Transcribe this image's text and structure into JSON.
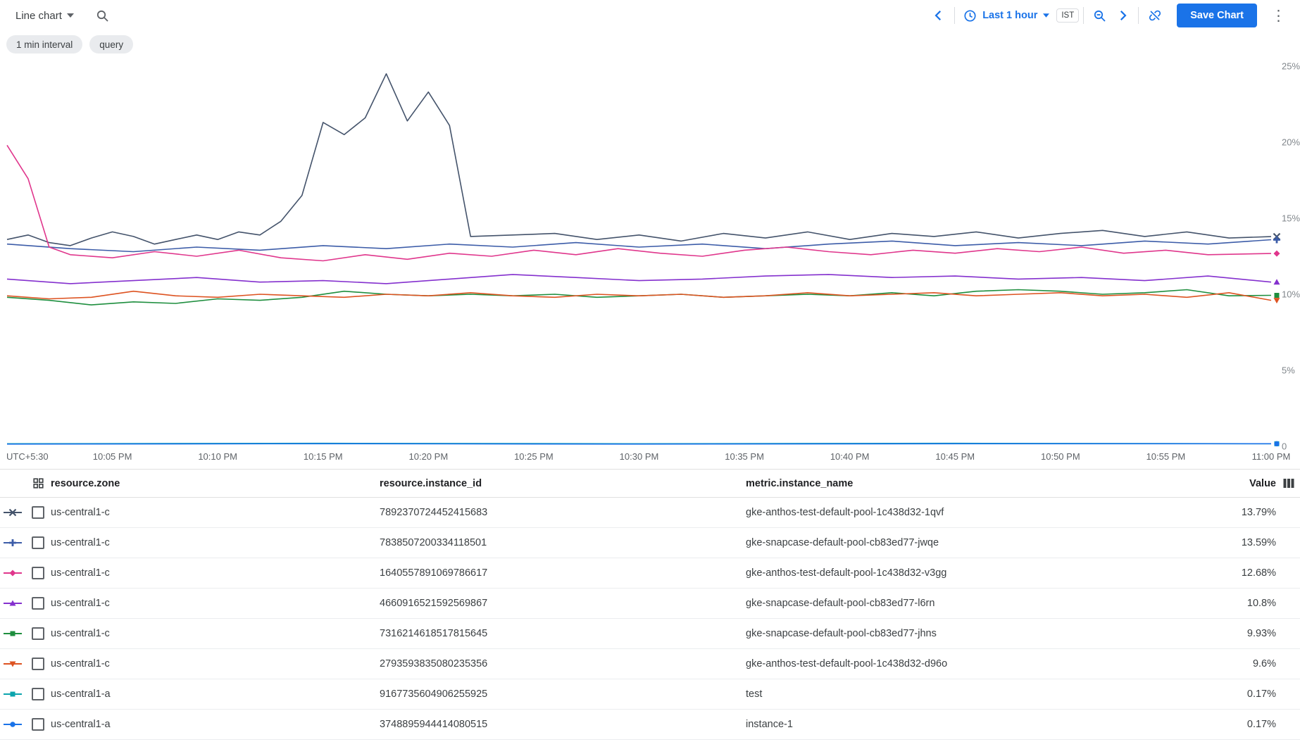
{
  "colors": {
    "accent_blue": "#1a73e8",
    "icon_gray": "#5f6368",
    "axis_label_gray": "#80868b",
    "text_dark": "#3c4043"
  },
  "toolbar": {
    "chart_type_label": "Line chart",
    "time_range_label": "Last 1 hour",
    "timezone_badge": "IST",
    "save_button_label": "Save Chart",
    "kebab_glyph": "⋮",
    "icons": [
      "chevron-down-icon",
      "search-icon",
      "chevron-left-icon",
      "clock-icon",
      "zoom-out-icon",
      "chevron-right-icon",
      "link-off-icon",
      "more-vert-icon"
    ]
  },
  "chips": [
    "1 min interval",
    "query"
  ],
  "chart_data": {
    "type": "line",
    "title": "",
    "xlabel": "",
    "ylabel": "",
    "xlim": [
      0,
      60
    ],
    "ylim": [
      0,
      25
    ],
    "grid": false,
    "legend_position": "table-below",
    "x_ticks": [
      {
        "label": "UTC+5:30",
        "minute": 0
      },
      {
        "label": "10:05 PM",
        "minute": 5
      },
      {
        "label": "10:10 PM",
        "minute": 10
      },
      {
        "label": "10:15 PM",
        "minute": 15
      },
      {
        "label": "10:20 PM",
        "minute": 20
      },
      {
        "label": "10:25 PM",
        "minute": 25
      },
      {
        "label": "10:30 PM",
        "minute": 30
      },
      {
        "label": "10:35 PM",
        "minute": 35
      },
      {
        "label": "10:40 PM",
        "minute": 40
      },
      {
        "label": "10:45 PM",
        "minute": 45
      },
      {
        "label": "10:50 PM",
        "minute": 50
      },
      {
        "label": "10:55 PM",
        "minute": 55
      },
      {
        "label": "11:00 PM",
        "minute": 60
      }
    ],
    "y_ticks": [
      {
        "label": "25%",
        "value": 25
      },
      {
        "label": "20%",
        "value": 20
      },
      {
        "label": "15%",
        "value": 15
      },
      {
        "label": "10%",
        "value": 10
      },
      {
        "label": "5%",
        "value": 5
      },
      {
        "label": "0",
        "value": 0
      }
    ],
    "series": [
      {
        "name": "gke-anthos-test-default-pool-1c438d32-1qvf",
        "color": "#44536b",
        "marker": "x",
        "points": [
          [
            0,
            13.6
          ],
          [
            1,
            13.9
          ],
          [
            2,
            13.4
          ],
          [
            3,
            13.2
          ],
          [
            4,
            13.7
          ],
          [
            5,
            14.1
          ],
          [
            6,
            13.8
          ],
          [
            7,
            13.3
          ],
          [
            8,
            13.6
          ],
          [
            9,
            13.9
          ],
          [
            10,
            13.6
          ],
          [
            11,
            14.1
          ],
          [
            12,
            13.9
          ],
          [
            13,
            14.8
          ],
          [
            14,
            16.5
          ],
          [
            15,
            21.3
          ],
          [
            16,
            20.5
          ],
          [
            17,
            21.6
          ],
          [
            18,
            24.5
          ],
          [
            19,
            21.4
          ],
          [
            20,
            23.3
          ],
          [
            21,
            21.1
          ],
          [
            22,
            13.8
          ],
          [
            24,
            13.9
          ],
          [
            26,
            14.0
          ],
          [
            28,
            13.6
          ],
          [
            30,
            13.9
          ],
          [
            32,
            13.5
          ],
          [
            34,
            14.0
          ],
          [
            36,
            13.7
          ],
          [
            38,
            14.1
          ],
          [
            40,
            13.6
          ],
          [
            42,
            14.0
          ],
          [
            44,
            13.8
          ],
          [
            46,
            14.1
          ],
          [
            48,
            13.7
          ],
          [
            50,
            14.0
          ],
          [
            52,
            14.2
          ],
          [
            54,
            13.8
          ],
          [
            56,
            14.1
          ],
          [
            58,
            13.7
          ],
          [
            60,
            13.79
          ]
        ]
      },
      {
        "name": "gke-snapcase-default-pool-cb83ed77-jwqe",
        "color": "#3c5ca8",
        "marker": "plus",
        "points": [
          [
            0,
            13.3
          ],
          [
            3,
            13.0
          ],
          [
            6,
            12.8
          ],
          [
            9,
            13.1
          ],
          [
            12,
            12.9
          ],
          [
            15,
            13.2
          ],
          [
            18,
            13.0
          ],
          [
            21,
            13.3
          ],
          [
            24,
            13.1
          ],
          [
            27,
            13.4
          ],
          [
            30,
            13.1
          ],
          [
            33,
            13.3
          ],
          [
            36,
            13.0
          ],
          [
            39,
            13.3
          ],
          [
            42,
            13.5
          ],
          [
            45,
            13.2
          ],
          [
            48,
            13.4
          ],
          [
            51,
            13.2
          ],
          [
            54,
            13.5
          ],
          [
            57,
            13.3
          ],
          [
            60,
            13.59
          ]
        ]
      },
      {
        "name": "gke-anthos-test-default-pool-1c438d32-v3gg",
        "color": "#e0368c",
        "marker": "diamond",
        "points": [
          [
            0,
            19.8
          ],
          [
            1,
            17.6
          ],
          [
            2,
            13.1
          ],
          [
            3,
            12.6
          ],
          [
            5,
            12.4
          ],
          [
            7,
            12.8
          ],
          [
            9,
            12.5
          ],
          [
            11,
            12.9
          ],
          [
            13,
            12.4
          ],
          [
            15,
            12.2
          ],
          [
            17,
            12.6
          ],
          [
            19,
            12.3
          ],
          [
            21,
            12.7
          ],
          [
            23,
            12.5
          ],
          [
            25,
            12.9
          ],
          [
            27,
            12.6
          ],
          [
            29,
            13.0
          ],
          [
            31,
            12.7
          ],
          [
            33,
            12.5
          ],
          [
            35,
            12.9
          ],
          [
            37,
            13.1
          ],
          [
            39,
            12.8
          ],
          [
            41,
            12.6
          ],
          [
            43,
            12.9
          ],
          [
            45,
            12.7
          ],
          [
            47,
            13.0
          ],
          [
            49,
            12.8
          ],
          [
            51,
            13.1
          ],
          [
            53,
            12.7
          ],
          [
            55,
            12.9
          ],
          [
            57,
            12.6
          ],
          [
            60,
            12.68
          ]
        ]
      },
      {
        "name": "gke-snapcase-default-pool-cb83ed77-l6rn",
        "color": "#8430ce",
        "marker": "triangle-up",
        "points": [
          [
            0,
            11.0
          ],
          [
            3,
            10.7
          ],
          [
            6,
            10.9
          ],
          [
            9,
            11.1
          ],
          [
            12,
            10.8
          ],
          [
            15,
            10.9
          ],
          [
            18,
            10.7
          ],
          [
            21,
            11.0
          ],
          [
            24,
            11.3
          ],
          [
            27,
            11.1
          ],
          [
            30,
            10.9
          ],
          [
            33,
            11.0
          ],
          [
            36,
            11.2
          ],
          [
            39,
            11.3
          ],
          [
            42,
            11.1
          ],
          [
            45,
            11.2
          ],
          [
            48,
            11.0
          ],
          [
            51,
            11.1
          ],
          [
            54,
            10.9
          ],
          [
            57,
            11.2
          ],
          [
            60,
            10.8
          ]
        ]
      },
      {
        "name": "gke-snapcase-default-pool-cb83ed77-jhns",
        "color": "#1e8e3e",
        "marker": "square",
        "points": [
          [
            0,
            9.8
          ],
          [
            2,
            9.6
          ],
          [
            4,
            9.3
          ],
          [
            6,
            9.5
          ],
          [
            8,
            9.4
          ],
          [
            10,
            9.7
          ],
          [
            12,
            9.6
          ],
          [
            14,
            9.8
          ],
          [
            16,
            10.2
          ],
          [
            18,
            10.0
          ],
          [
            20,
            9.9
          ],
          [
            22,
            10.0
          ],
          [
            24,
            9.9
          ],
          [
            26,
            10.0
          ],
          [
            28,
            9.8
          ],
          [
            30,
            9.9
          ],
          [
            32,
            10.0
          ],
          [
            34,
            9.8
          ],
          [
            36,
            9.9
          ],
          [
            38,
            10.0
          ],
          [
            40,
            9.9
          ],
          [
            42,
            10.1
          ],
          [
            44,
            9.9
          ],
          [
            46,
            10.2
          ],
          [
            48,
            10.3
          ],
          [
            50,
            10.2
          ],
          [
            52,
            10.0
          ],
          [
            54,
            10.1
          ],
          [
            56,
            10.3
          ],
          [
            58,
            9.9
          ],
          [
            60,
            9.93
          ]
        ]
      },
      {
        "name": "gke-anthos-test-default-pool-1c438d32-d96o",
        "color": "#dd5321",
        "marker": "triangle-down",
        "points": [
          [
            0,
            9.9
          ],
          [
            2,
            9.7
          ],
          [
            4,
            9.8
          ],
          [
            6,
            10.2
          ],
          [
            8,
            9.9
          ],
          [
            10,
            9.8
          ],
          [
            12,
            10.0
          ],
          [
            14,
            9.9
          ],
          [
            16,
            9.8
          ],
          [
            18,
            10.0
          ],
          [
            20,
            9.9
          ],
          [
            22,
            10.1
          ],
          [
            24,
            9.9
          ],
          [
            26,
            9.8
          ],
          [
            28,
            10.0
          ],
          [
            30,
            9.9
          ],
          [
            32,
            10.0
          ],
          [
            34,
            9.8
          ],
          [
            36,
            9.9
          ],
          [
            38,
            10.1
          ],
          [
            40,
            9.9
          ],
          [
            42,
            10.0
          ],
          [
            44,
            10.1
          ],
          [
            46,
            9.9
          ],
          [
            48,
            10.0
          ],
          [
            50,
            10.1
          ],
          [
            52,
            9.9
          ],
          [
            54,
            10.0
          ],
          [
            56,
            9.8
          ],
          [
            58,
            10.1
          ],
          [
            60,
            9.6
          ]
        ]
      },
      {
        "name": "test",
        "color": "#0ca4ad",
        "marker": "square",
        "points": [
          [
            0,
            0.17
          ],
          [
            15,
            0.2
          ],
          [
            30,
            0.17
          ],
          [
            45,
            0.2
          ],
          [
            60,
            0.17
          ]
        ]
      },
      {
        "name": "instance-1",
        "color": "#1a73e8",
        "marker": "circle",
        "points": [
          [
            0,
            0.15
          ],
          [
            15,
            0.17
          ],
          [
            30,
            0.15
          ],
          [
            45,
            0.17
          ],
          [
            60,
            0.17
          ]
        ]
      }
    ]
  },
  "table": {
    "columns": [
      "resource.zone",
      "resource.instance_id",
      "metric.instance_name",
      "Value"
    ],
    "rows": [
      {
        "zone": "us-central1-c",
        "instance_id": "7892370724452415683",
        "instance_name": "gke-anthos-test-default-pool-1c438d32-1qvf",
        "value": "13.79%",
        "color": "#44536b",
        "marker": "x"
      },
      {
        "zone": "us-central1-c",
        "instance_id": "7838507200334118501",
        "instance_name": "gke-snapcase-default-pool-cb83ed77-jwqe",
        "value": "13.59%",
        "color": "#3c5ca8",
        "marker": "plus"
      },
      {
        "zone": "us-central1-c",
        "instance_id": "1640557891069786617",
        "instance_name": "gke-anthos-test-default-pool-1c438d32-v3gg",
        "value": "12.68%",
        "color": "#e0368c",
        "marker": "diamond"
      },
      {
        "zone": "us-central1-c",
        "instance_id": "4660916521592569867",
        "instance_name": "gke-snapcase-default-pool-cb83ed77-l6rn",
        "value": "10.8%",
        "color": "#8430ce",
        "marker": "triangle-up"
      },
      {
        "zone": "us-central1-c",
        "instance_id": "7316214618517815645",
        "instance_name": "gke-snapcase-default-pool-cb83ed77-jhns",
        "value": "9.93%",
        "color": "#1e8e3e",
        "marker": "square"
      },
      {
        "zone": "us-central1-c",
        "instance_id": "2793593835080235356",
        "instance_name": "gke-anthos-test-default-pool-1c438d32-d96o",
        "value": "9.6%",
        "color": "#dd5321",
        "marker": "triangle-down"
      },
      {
        "zone": "us-central1-a",
        "instance_id": "9167735604906255925",
        "instance_name": "test",
        "value": "0.17%",
        "color": "#0ca4ad",
        "marker": "square"
      },
      {
        "zone": "us-central1-a",
        "instance_id": "3748895944414080515",
        "instance_name": "instance-1",
        "value": "0.17%",
        "color": "#1a73e8",
        "marker": "circle"
      }
    ]
  }
}
